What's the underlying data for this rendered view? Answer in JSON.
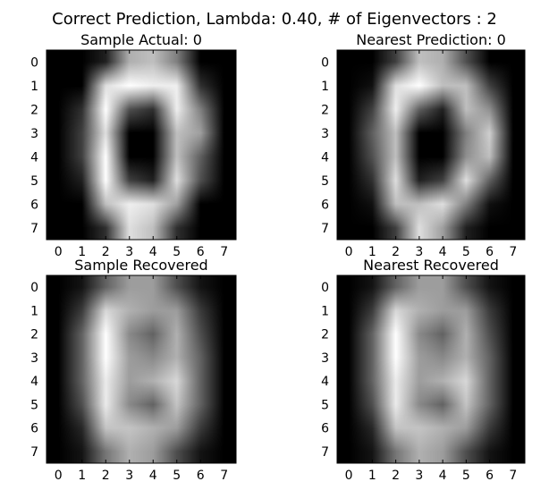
{
  "figure_title": "Correct Prediction, Lambda: 0.40, # of Eigenvectors : 2",
  "chart_data": [
    {
      "type": "heatmap",
      "title": "Sample Actual: 0",
      "colormap": "gray",
      "x_ticks": [
        "0",
        "1",
        "2",
        "3",
        "4",
        "5",
        "6",
        "7"
      ],
      "y_ticks": [
        "0",
        "1",
        "2",
        "3",
        "4",
        "5",
        "6",
        "7"
      ],
      "grid": false,
      "matrix": [
        [
          0,
          0,
          2,
          11,
          12,
          8,
          0,
          0
        ],
        [
          0,
          0,
          14,
          16,
          15,
          15,
          3,
          0
        ],
        [
          0,
          3,
          16,
          5,
          3,
          15,
          8,
          0
        ],
        [
          0,
          4,
          14,
          0,
          0,
          12,
          10,
          0
        ],
        [
          0,
          4,
          16,
          0,
          0,
          12,
          6,
          0
        ],
        [
          0,
          2,
          16,
          4,
          2,
          14,
          5,
          0
        ],
        [
          0,
          0,
          12,
          15,
          14,
          10,
          0,
          0
        ],
        [
          0,
          0,
          3,
          14,
          12,
          3,
          0,
          0
        ]
      ]
    },
    {
      "type": "heatmap",
      "title": "Nearest Prediction: 0",
      "colormap": "gray",
      "x_ticks": [
        "0",
        "1",
        "2",
        "3",
        "4",
        "5",
        "6",
        "7"
      ],
      "y_ticks": [
        "0",
        "1",
        "2",
        "3",
        "4",
        "5",
        "6",
        "7"
      ],
      "grid": false,
      "matrix": [
        [
          0,
          0,
          4,
          12,
          11,
          5,
          0,
          0
        ],
        [
          0,
          1,
          14,
          16,
          12,
          12,
          4,
          0
        ],
        [
          0,
          4,
          15,
          6,
          2,
          12,
          9,
          0
        ],
        [
          0,
          6,
          12,
          0,
          0,
          8,
          13,
          0
        ],
        [
          0,
          5,
          12,
          0,
          0,
          9,
          12,
          0
        ],
        [
          0,
          3,
          14,
          2,
          4,
          14,
          6,
          0
        ],
        [
          0,
          1,
          12,
          12,
          14,
          8,
          1,
          0
        ],
        [
          0,
          0,
          4,
          14,
          10,
          2,
          0,
          0
        ]
      ]
    },
    {
      "type": "heatmap",
      "title": "Sample Recovered",
      "colormap": "gray",
      "x_ticks": [
        "0",
        "1",
        "2",
        "3",
        "4",
        "5",
        "6",
        "7"
      ],
      "y_ticks": [
        "0",
        "1",
        "2",
        "3",
        "4",
        "5",
        "6",
        "7"
      ],
      "grid": false,
      "matrix": [
        [
          0,
          1,
          5,
          8,
          8,
          4,
          1,
          0
        ],
        [
          0,
          3,
          11,
          9,
          8,
          8,
          3,
          0
        ],
        [
          0,
          5,
          13,
          7,
          5,
          9,
          4,
          0
        ],
        [
          0,
          5,
          13,
          8,
          7,
          9,
          5,
          0
        ],
        [
          0,
          5,
          12,
          8,
          9,
          11,
          5,
          0
        ],
        [
          0,
          4,
          12,
          7,
          5,
          10,
          5,
          0
        ],
        [
          0,
          2,
          10,
          10,
          9,
          8,
          3,
          0
        ],
        [
          0,
          1,
          6,
          9,
          8,
          4,
          1,
          0
        ]
      ]
    },
    {
      "type": "heatmap",
      "title": "Nearest Recovered",
      "colormap": "gray",
      "x_ticks": [
        "0",
        "1",
        "2",
        "3",
        "4",
        "5",
        "6",
        "7"
      ],
      "y_ticks": [
        "0",
        "1",
        "2",
        "3",
        "4",
        "5",
        "6",
        "7"
      ],
      "grid": false,
      "matrix": [
        [
          0,
          1,
          5,
          8,
          8,
          4,
          1,
          0
        ],
        [
          0,
          3,
          11,
          9,
          8,
          8,
          3,
          0
        ],
        [
          0,
          5,
          13,
          7,
          5,
          9,
          4,
          0
        ],
        [
          0,
          5,
          13,
          8,
          7,
          9,
          5,
          0
        ],
        [
          0,
          5,
          12,
          8,
          9,
          11,
          5,
          0
        ],
        [
          0,
          4,
          12,
          7,
          5,
          10,
          5,
          0
        ],
        [
          0,
          2,
          10,
          10,
          9,
          8,
          3,
          0
        ],
        [
          0,
          1,
          6,
          9,
          8,
          4,
          1,
          0
        ]
      ]
    }
  ]
}
